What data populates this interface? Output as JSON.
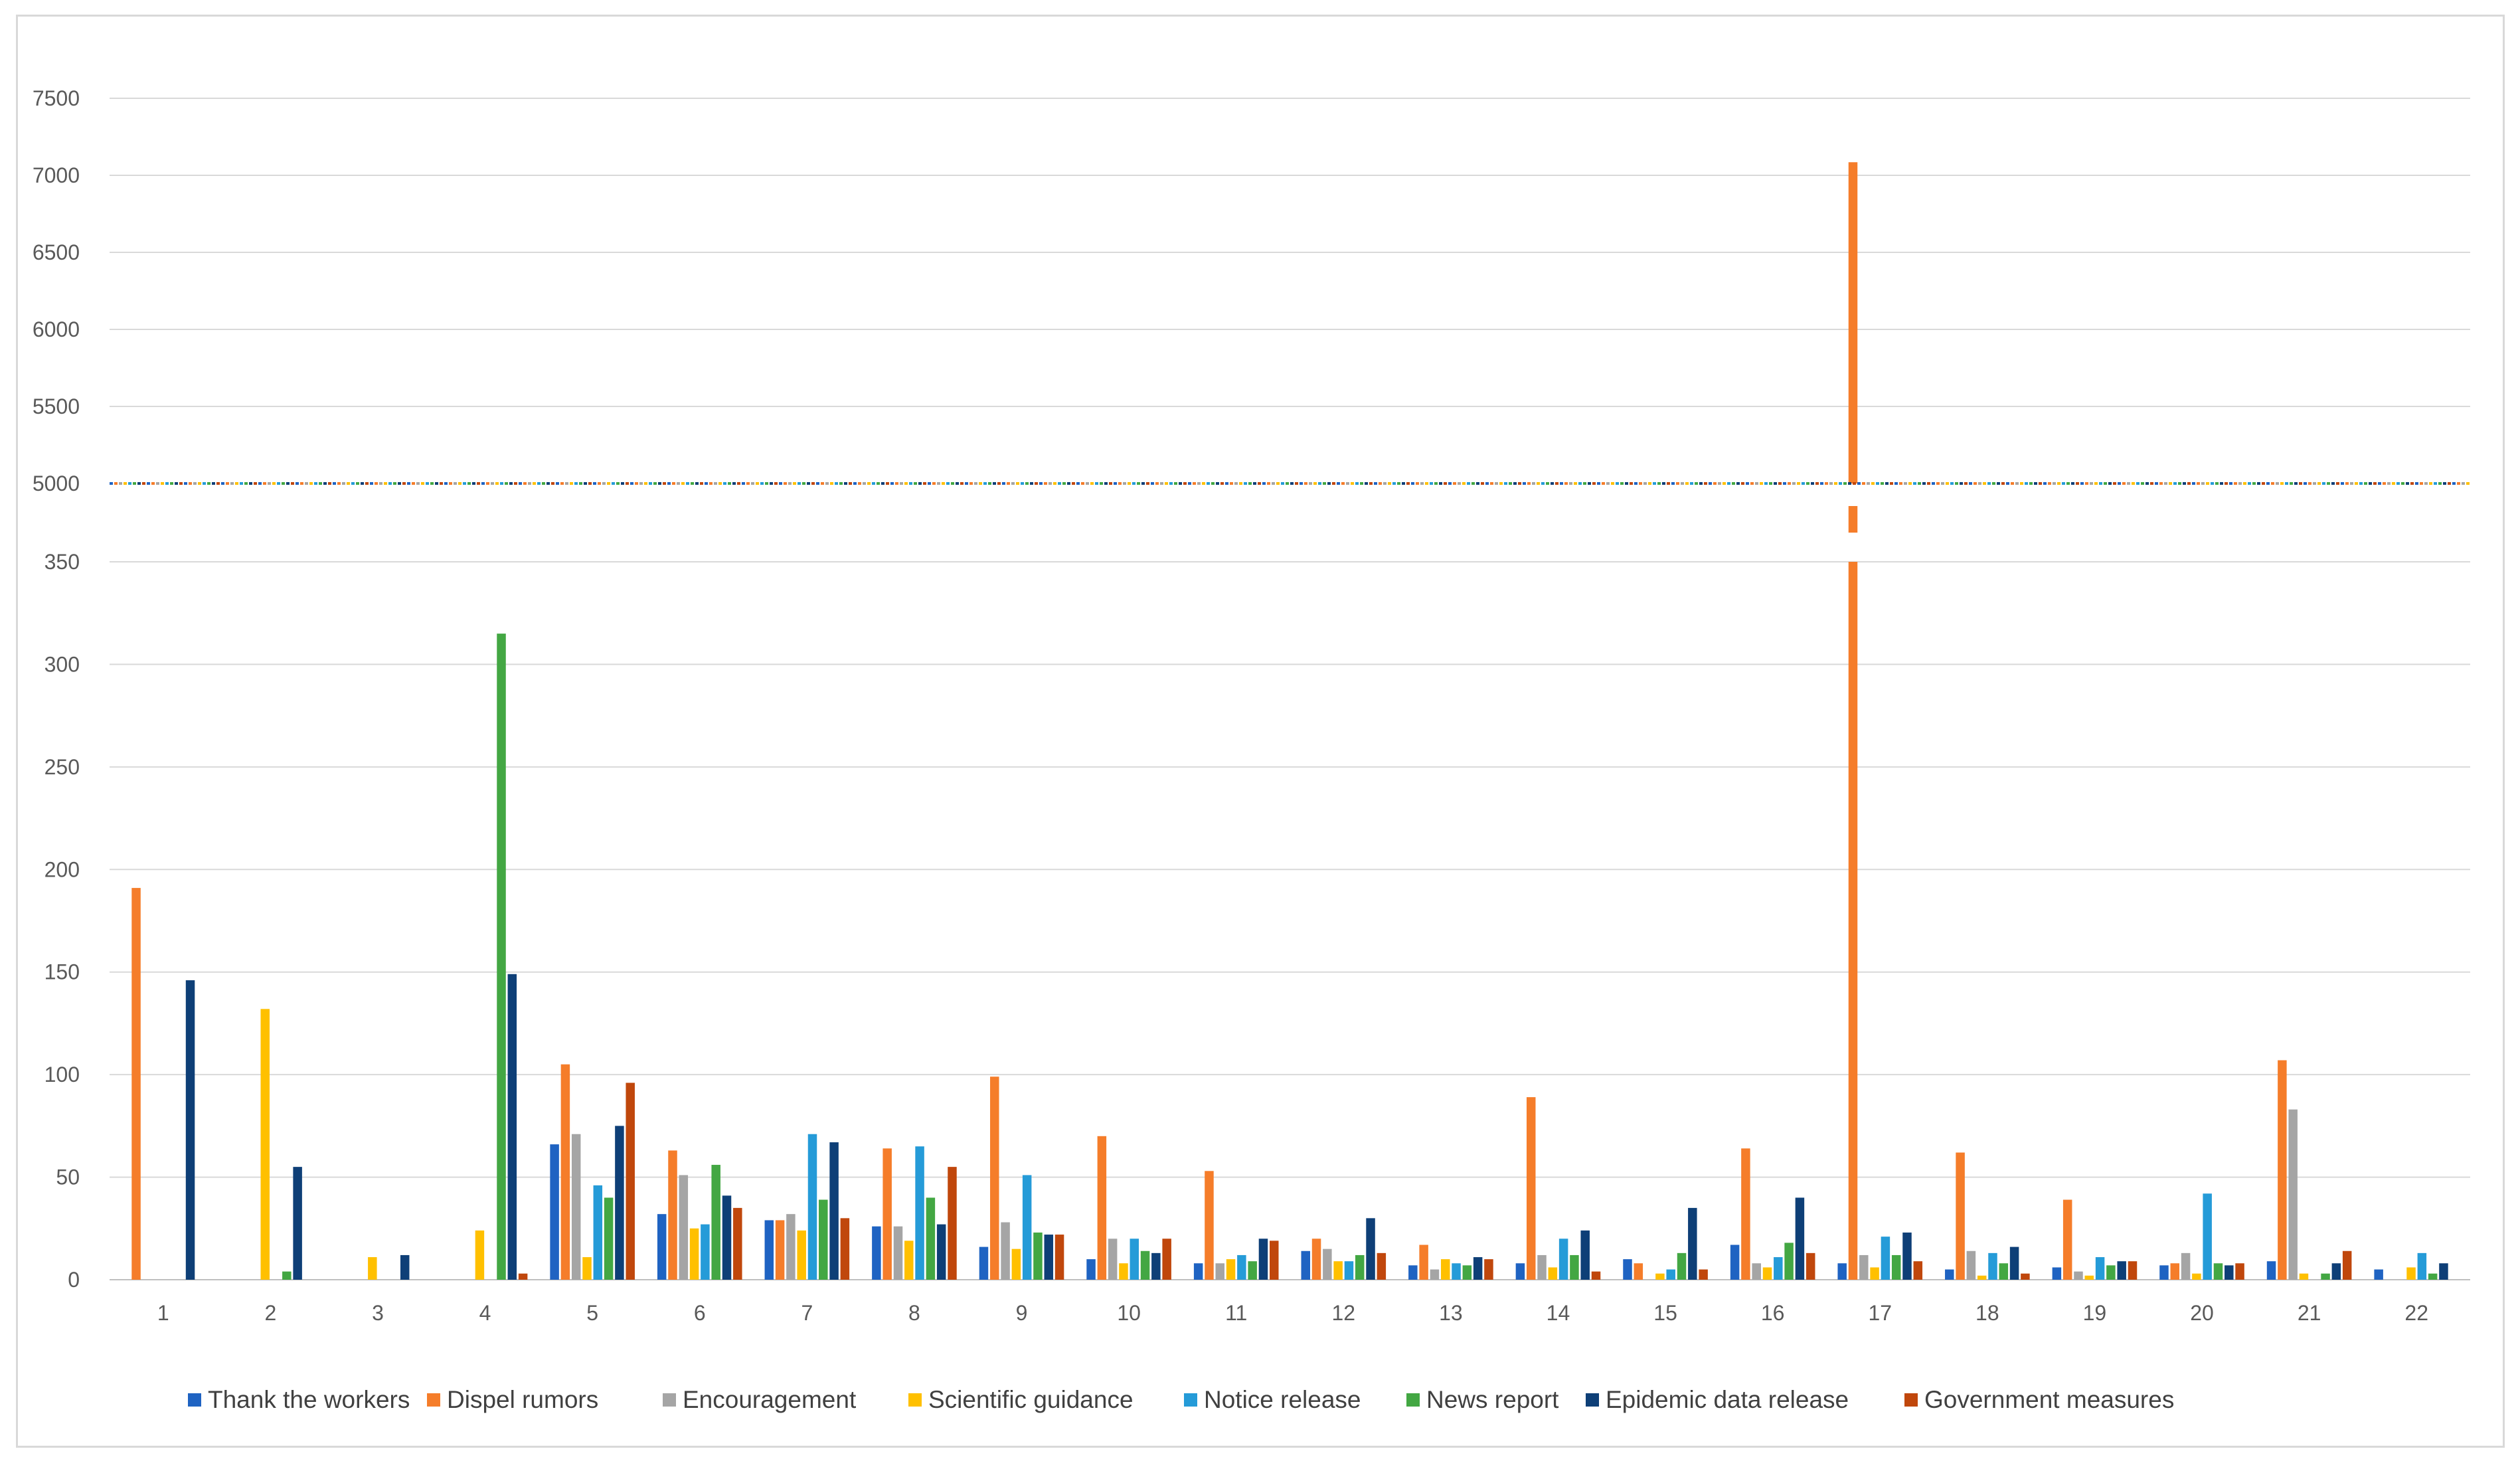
{
  "chart_data": {
    "type": "bar",
    "title": "",
    "xlabel": "",
    "ylabel": "",
    "axis_break": {
      "lower_range": [
        0,
        350
      ],
      "upper_range": [
        5000,
        7500
      ]
    },
    "y_ticks_lower": [
      "0",
      "50",
      "100",
      "150",
      "200",
      "250",
      "300",
      "350"
    ],
    "y_ticks_upper": [
      "5000",
      "5500",
      "6000",
      "6500",
      "7000",
      "7500"
    ],
    "categories": [
      "1",
      "2",
      "3",
      "4",
      "5",
      "6",
      "7",
      "8",
      "9",
      "10",
      "11",
      "12",
      "13",
      "14",
      "15",
      "16",
      "17",
      "18",
      "19",
      "20",
      "21",
      "22"
    ],
    "grid": true,
    "legend_position": "bottom",
    "series": [
      {
        "name": "Thank the workers",
        "color": "#1f63c2",
        "values": [
          0,
          0,
          0,
          0,
          66,
          32,
          29,
          26,
          16,
          10,
          8,
          14,
          7,
          8,
          10,
          17,
          8,
          5,
          6,
          7,
          9,
          5
        ]
      },
      {
        "name": "Dispel rumors",
        "color": "#f57d2a",
        "values": [
          191,
          0,
          0,
          0,
          105,
          63,
          29,
          64,
          99,
          70,
          53,
          20,
          17,
          89,
          8,
          64,
          7085,
          62,
          39,
          8,
          107,
          0
        ]
      },
      {
        "name": "Encouragement",
        "color": "#a5a5a5",
        "values": [
          0,
          0,
          0,
          0,
          71,
          51,
          32,
          26,
          28,
          20,
          8,
          15,
          5,
          12,
          0,
          8,
          12,
          14,
          4,
          13,
          83,
          0
        ]
      },
      {
        "name": "Scientific guidance",
        "color": "#ffc000",
        "values": [
          0,
          132,
          11,
          24,
          11,
          25,
          24,
          19,
          15,
          8,
          10,
          9,
          10,
          6,
          3,
          6,
          6,
          2,
          2,
          3,
          3,
          6
        ]
      },
      {
        "name": "Notice release",
        "color": "#259bd8",
        "values": [
          0,
          0,
          0,
          0,
          46,
          27,
          71,
          65,
          51,
          20,
          12,
          9,
          8,
          20,
          5,
          11,
          21,
          13,
          11,
          42,
          0,
          13
        ]
      },
      {
        "name": "News report",
        "color": "#43a743",
        "values": [
          0,
          4,
          0,
          315,
          40,
          56,
          39,
          40,
          23,
          14,
          9,
          12,
          7,
          12,
          13,
          18,
          12,
          8,
          7,
          8,
          3,
          3
        ]
      },
      {
        "name": "Epidemic data release",
        "color": "#0e3f77",
        "values": [
          146,
          55,
          12,
          149,
          75,
          41,
          67,
          27,
          22,
          13,
          20,
          30,
          11,
          24,
          35,
          40,
          23,
          16,
          9,
          7,
          8,
          8
        ]
      },
      {
        "name": "Government measures",
        "color": "#c0470c",
        "values": [
          0,
          0,
          0,
          3,
          96,
          35,
          30,
          55,
          22,
          20,
          19,
          13,
          10,
          4,
          5,
          13,
          9,
          3,
          9,
          8,
          14,
          0
        ]
      }
    ]
  }
}
